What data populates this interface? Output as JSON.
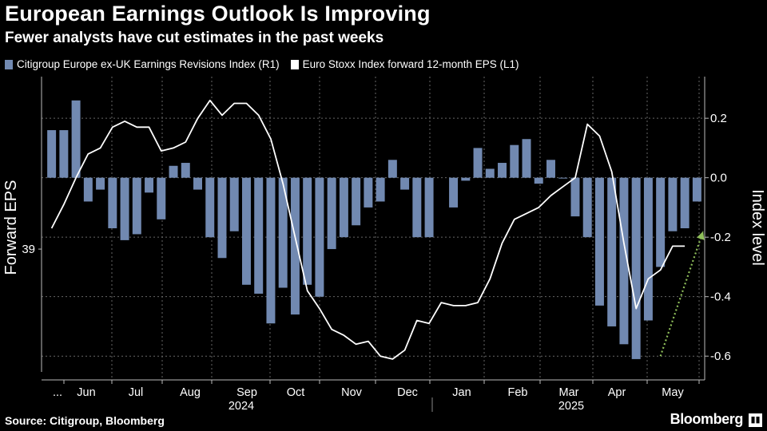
{
  "title": "European Earnings Outlook Is Improving",
  "subtitle": "Fewer analysts have cut estimates in the past weeks",
  "legend": {
    "bars_label": "Citigroup Europe ex-UK Earnings Revisions Index (R1)",
    "line_label": "Euro Stoxx Index forward 12-month EPS (L1)"
  },
  "source": "Source: Citigroup, Bloomberg",
  "brand": "Bloomberg",
  "colors": {
    "background": "#000000",
    "bars": "#7189b1",
    "line": "#ffffff",
    "arrow": "#8fbf5a",
    "grid": "#666666"
  },
  "chart_data": {
    "type": "bar",
    "x_tick_labels": [
      "...",
      "Jun",
      "Jul",
      "Aug",
      "Sep",
      "Oct",
      "Nov",
      "Dec",
      "Jan",
      "Feb",
      "Mar",
      "Apr",
      "May"
    ],
    "x_year_labels": [
      "2024",
      "2025"
    ],
    "ylabel_left": "Forward EPS",
    "ylabel_right": "Index level",
    "left_axis_ticks": [
      "39"
    ],
    "right_axis_ticks": [
      "0.2",
      "0.0",
      "-0.2",
      "-0.4",
      "-0.6"
    ],
    "right_ylim": [
      -0.68,
      0.34
    ],
    "grid": true,
    "legend_position": "top-left",
    "series": [
      {
        "name": "Citigroup Europe ex-UK Earnings Revisions Index (R1)",
        "axis": "right",
        "type": "bar",
        "values": [
          0.16,
          0.16,
          0.26,
          -0.08,
          -0.04,
          -0.17,
          -0.21,
          -0.19,
          -0.05,
          -0.14,
          0.04,
          0.05,
          -0.04,
          -0.2,
          -0.27,
          -0.18,
          -0.36,
          -0.39,
          -0.49,
          -0.37,
          -0.46,
          -0.36,
          -0.4,
          -0.24,
          -0.2,
          -0.16,
          -0.1,
          -0.08,
          0.06,
          -0.04,
          -0.2,
          -0.2,
          null,
          -0.1,
          -0.01,
          0.1,
          0.03,
          0.05,
          0.11,
          0.13,
          -0.02,
          0.06,
          0.0,
          -0.13,
          -0.2,
          -0.43,
          -0.5,
          -0.56,
          -0.61,
          -0.48,
          -0.3,
          -0.18,
          -0.17,
          -0.08
        ]
      },
      {
        "name": "Euro Stoxx Index forward 12-month EPS (L1)",
        "axis": "left",
        "type": "line",
        "values": [
          -0.17,
          -0.09,
          0.0,
          0.08,
          0.1,
          0.17,
          0.19,
          0.17,
          0.17,
          0.09,
          0.1,
          0.12,
          0.2,
          0.26,
          0.21,
          0.25,
          0.25,
          0.21,
          0.13,
          -0.02,
          -0.2,
          -0.38,
          -0.44,
          -0.51,
          -0.53,
          -0.56,
          -0.55,
          -0.6,
          -0.61,
          -0.58,
          -0.48,
          -0.49,
          -0.42,
          -0.43,
          -0.43,
          -0.42,
          -0.34,
          -0.22,
          -0.14,
          -0.12,
          -0.1,
          -0.06,
          -0.03,
          0.0,
          0.18,
          0.14,
          0.02,
          -0.22,
          -0.44,
          -0.34,
          -0.31,
          -0.23,
          -0.23
        ]
      }
    ],
    "annotations": [
      {
        "type": "dotted-arrow",
        "description": "upward trend arrow",
        "from": [
          50,
          -0.6
        ],
        "to": [
          53.5,
          -0.18
        ]
      }
    ]
  }
}
